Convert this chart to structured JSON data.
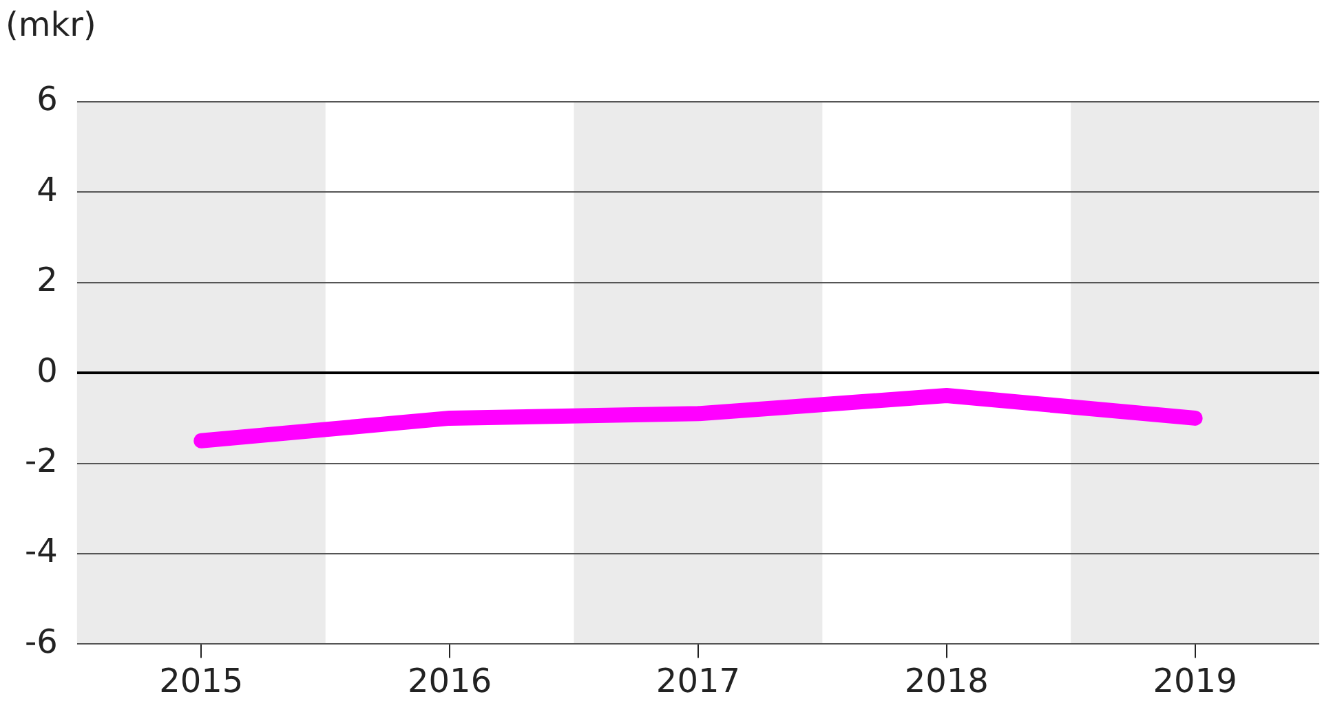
{
  "chart_data": {
    "type": "line",
    "ylabel": "(mkr)",
    "categories": [
      "2015",
      "2016",
      "2017",
      "2018",
      "2019"
    ],
    "series": [
      {
        "color": "#ff00ff",
        "values": [
          -1.5,
          -1.0,
          -0.9,
          -0.5,
          -1.0
        ]
      }
    ],
    "ylim": [
      -6,
      6
    ],
    "yticks": [
      -6,
      -4,
      -2,
      0,
      2,
      4,
      6
    ],
    "grid": "y",
    "legend": false,
    "marker": "none",
    "line_style": "solid",
    "bands": [
      {
        "axis": "x",
        "from": "2015",
        "to": "2015",
        "color": "#ebebeb"
      },
      {
        "axis": "x",
        "from": "2017",
        "to": "2017",
        "color": "#ebebeb"
      },
      {
        "axis": "x",
        "from": "2019",
        "to": "2019",
        "color": "#ebebeb"
      }
    ]
  }
}
